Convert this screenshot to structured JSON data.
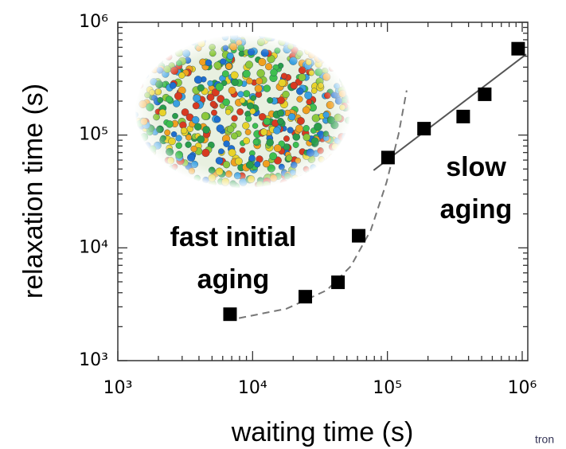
{
  "chart_data": {
    "type": "scatter",
    "xlabel": "waiting time (s)",
    "ylabel": "relaxation time (s)",
    "xscale": "log",
    "yscale": "log",
    "xlim": [
      1000,
      1100000
    ],
    "ylim": [
      1000,
      1000000
    ],
    "xticks": [
      {
        "value": 1000,
        "label": "10³"
      },
      {
        "value": 10000,
        "label": "10⁴"
      },
      {
        "value": 100000,
        "label": "10⁵"
      },
      {
        "value": 1000000,
        "label": "10⁶"
      }
    ],
    "yticks": [
      {
        "value": 1000,
        "label": "10³"
      },
      {
        "value": 10000,
        "label": "10⁴"
      },
      {
        "value": 100000,
        "label": "10⁵"
      },
      {
        "value": 1000000,
        "label": "10⁶"
      }
    ],
    "minor_ticks": true,
    "grid": false,
    "series": [
      {
        "type": "scatter",
        "marker": "square",
        "color": "#000000",
        "x": [
          6800,
          24600,
          43000,
          61200,
          101000,
          187000,
          365000,
          527000,
          933000
        ],
        "values": [
          2580,
          3690,
          4950,
          12800,
          63200,
          114000,
          146000,
          230000,
          583000
        ]
      },
      {
        "type": "line",
        "dashed": true,
        "color": "#777777",
        "x": [
          7920,
          17900,
          35500,
          53500,
          75200,
          98600,
          121000,
          139000
        ],
        "values": [
          2380,
          2890,
          4210,
          6870,
          14300,
          38200,
          102000,
          249000
        ]
      },
      {
        "type": "line",
        "dashed": false,
        "color": "#555555",
        "x": [
          79000,
          1070000
        ],
        "values": [
          48700,
          520000
        ]
      }
    ],
    "annotations": [
      {
        "lines": [
          "fast initial",
          "aging"
        ]
      },
      {
        "lines": [
          "slow",
          "aging"
        ]
      }
    ],
    "watermark": "tron"
  }
}
